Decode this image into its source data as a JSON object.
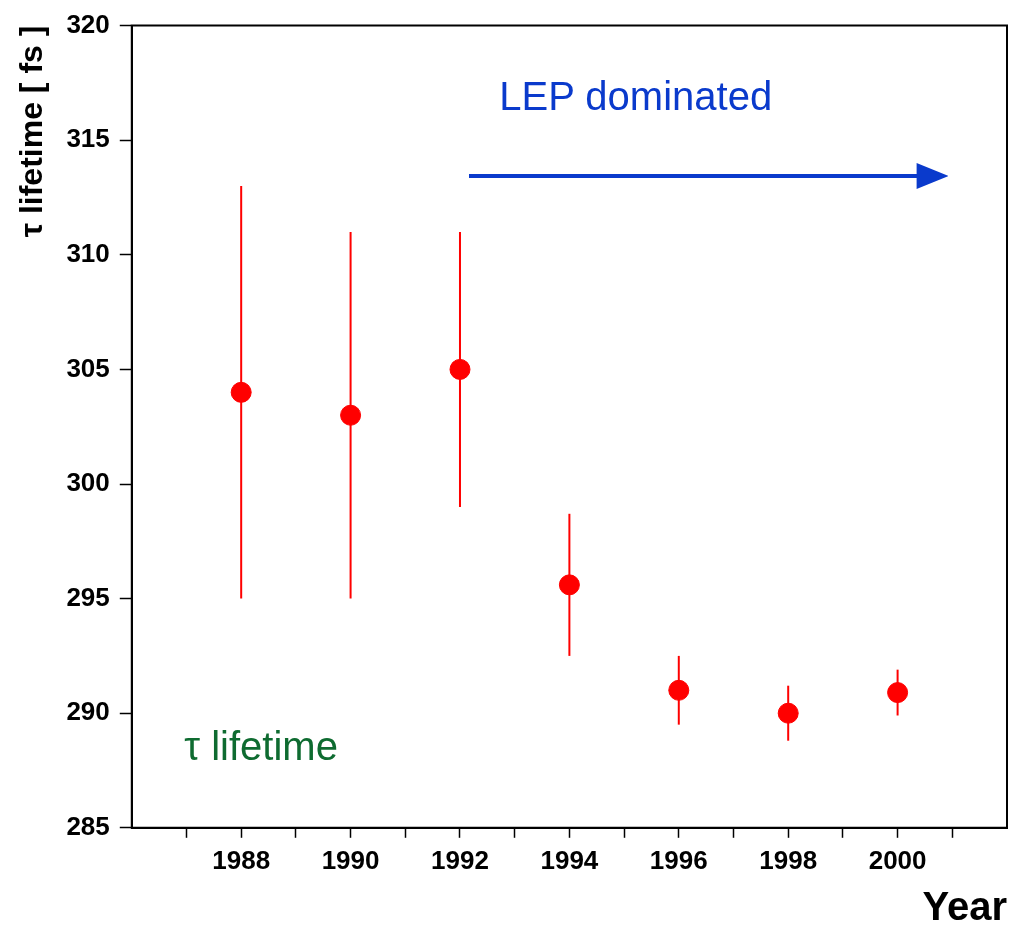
{
  "chart_data": {
    "type": "scatter",
    "xlabel": "Year",
    "ylabel": "τ lifetime [ fs ]",
    "x": [
      1988,
      1990,
      1992,
      1994,
      1996,
      1998,
      2000
    ],
    "values": [
      304,
      303,
      305,
      295.6,
      291,
      290,
      290.9
    ],
    "errors": [
      9,
      8,
      6,
      3.1,
      1.5,
      1.2,
      1
    ],
    "color": "#ff0000",
    "marker": "circle",
    "grid": false,
    "legend": false,
    "xlim": [
      1986,
      2002
    ],
    "xticks": [
      {
        "value": 1987,
        "label": null
      },
      1988,
      {
        "value": 1989,
        "label": null
      },
      1990,
      {
        "value": 1991,
        "label": null
      },
      1992,
      {
        "value": 1993,
        "label": null
      },
      1994,
      {
        "value": 1995,
        "label": null
      },
      1996,
      {
        "value": 1997,
        "label": null
      },
      1998,
      {
        "value": 1999,
        "label": null
      },
      2000,
      {
        "value": 2001,
        "label": null
      }
    ],
    "ylim": [
      285,
      320
    ],
    "yticks": [
      285,
      290,
      295,
      300,
      305,
      310,
      315,
      320
    ],
    "annotations": [
      "LEP dominated",
      "τ lifetime"
    ]
  }
}
